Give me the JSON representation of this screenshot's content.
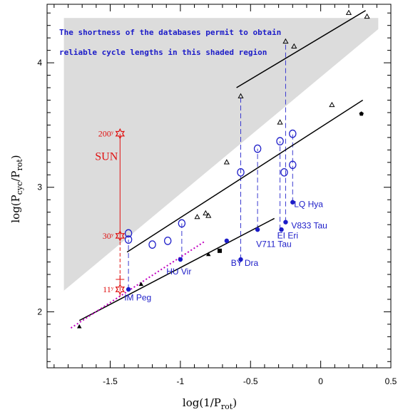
{
  "chart_data": {
    "type": "scatter",
    "title": "",
    "xlabel": "log(1/P_rot)",
    "ylabel": "log(P_cyc/P_rot)",
    "xlim": [
      -1.95,
      0.5
    ],
    "ylim": [
      1.55,
      4.47
    ],
    "x_ticks": [
      "-1.5",
      "-1",
      "-0.5",
      "0",
      "0.5"
    ],
    "x_tick_values": [
      -1.5,
      -1.0,
      -0.5,
      0.0,
      0.5
    ],
    "y_ticks": [
      "2",
      "3",
      "4"
    ],
    "y_tick_values": [
      2,
      3,
      4
    ],
    "annotation_lines": [
      "The shortness of the databases permit to obtain",
      "reliable cycle lengths in this shaded region"
    ],
    "shaded_region": [
      [
        -1.83,
        2.17
      ],
      [
        -1.83,
        4.36
      ],
      [
        0.41,
        4.36
      ],
      [
        0.41,
        4.27
      ]
    ],
    "sun": {
      "label": "SUN",
      "x": -1.43,
      "cycles": [
        {
          "label": "200ʸ",
          "y": 3.43
        },
        {
          "label": "30ʸ",
          "y": 2.61
        },
        {
          "label": "11ʸ",
          "y": 2.18
        }
      ],
      "color": "#e01010"
    },
    "fit_lines": [
      {
        "from": [
          -1.72,
          1.93
        ],
        "to": [
          -0.33,
          2.75
        ],
        "color": "#000000"
      },
      {
        "from": [
          -1.38,
          2.48
        ],
        "to": [
          0.3,
          3.7
        ],
        "color": "#000000"
      },
      {
        "from": [
          -0.6,
          3.8
        ],
        "to": [
          0.32,
          4.42
        ],
        "color": "#000000"
      },
      {
        "from": [
          -1.78,
          1.87
        ],
        "to": [
          -0.82,
          2.57
        ],
        "color": "#c000c0",
        "dotted": true
      }
    ],
    "series": [
      {
        "marker": "filled-circle",
        "color": "#1c1cc8",
        "points": [
          [
            -1.37,
            2.18
          ],
          [
            -1.0,
            2.42
          ],
          [
            -0.67,
            2.57
          ],
          [
            -0.57,
            2.42
          ],
          [
            -0.45,
            2.66
          ],
          [
            -0.28,
            2.66
          ],
          [
            -0.25,
            2.72
          ],
          [
            -0.2,
            2.88
          ]
        ]
      },
      {
        "marker": "open-circle",
        "color": "#1c1cc8",
        "points": [
          [
            -1.37,
            2.63
          ],
          [
            -1.37,
            2.58
          ],
          [
            -1.2,
            2.54
          ],
          [
            -1.09,
            2.57
          ],
          [
            -0.99,
            2.71
          ],
          [
            -0.57,
            3.12
          ],
          [
            -0.45,
            3.31
          ],
          [
            -0.29,
            3.37
          ],
          [
            -0.26,
            3.12
          ],
          [
            -0.2,
            3.43
          ],
          [
            -0.2,
            3.18
          ]
        ]
      },
      {
        "marker": "open-triangle",
        "color": "#000000",
        "points": [
          [
            -0.88,
            2.76
          ],
          [
            -0.82,
            2.79
          ],
          [
            -0.8,
            2.77
          ],
          [
            -0.67,
            3.2
          ],
          [
            -0.57,
            3.73
          ],
          [
            -0.29,
            3.52
          ],
          [
            -0.25,
            4.17
          ],
          [
            -0.19,
            4.13
          ],
          [
            0.08,
            3.66
          ],
          [
            0.2,
            4.4
          ],
          [
            0.33,
            4.37
          ]
        ]
      },
      {
        "marker": "filled-triangle",
        "color": "#000000",
        "points": [
          [
            -1.72,
            1.88
          ],
          [
            -1.28,
            2.22
          ],
          [
            -0.8,
            2.46
          ]
        ]
      },
      {
        "marker": "filled-square",
        "color": "#000000",
        "points": [
          [
            -0.72,
            2.49
          ]
        ]
      },
      {
        "marker": "filled-pentagon",
        "color": "#000000",
        "points": [
          [
            0.29,
            3.59
          ]
        ]
      }
    ],
    "connectors": [
      {
        "x": -1.37,
        "y1": 2.18,
        "y2": 2.58
      },
      {
        "x": -0.99,
        "y1": 2.42,
        "y2": 2.71
      },
      {
        "x": -0.57,
        "y1": 2.42,
        "y2": 3.73
      },
      {
        "x": -0.45,
        "y1": 2.66,
        "y2": 3.31
      },
      {
        "x": -0.29,
        "y1": 2.66,
        "y2": 3.37
      },
      {
        "x": -0.25,
        "y1": 2.72,
        "y2": 4.17
      },
      {
        "x": -0.2,
        "y1": 2.88,
        "y2": 3.43
      }
    ],
    "star_names": [
      {
        "label": "IM Peg",
        "x": -1.4,
        "y": 2.09
      },
      {
        "label": "HU Vir",
        "x": -1.1,
        "y": 2.3
      },
      {
        "label": "BY Dra",
        "x": -0.64,
        "y": 2.37
      },
      {
        "label": "V711 Tau",
        "x": -0.46,
        "y": 2.52
      },
      {
        "label": "EI Eri",
        "x": -0.31,
        "y": 2.59
      },
      {
        "label": "V833 Tau",
        "x": -0.21,
        "y": 2.67
      },
      {
        "label": "LQ Hya",
        "x": -0.19,
        "y": 2.84
      }
    ]
  }
}
